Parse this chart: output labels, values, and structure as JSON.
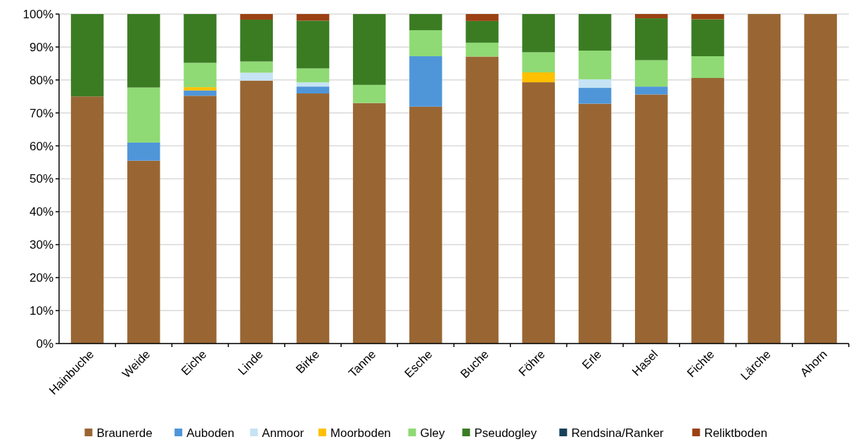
{
  "chart_data": {
    "type": "bar",
    "stacked": true,
    "categories": [
      "Hainbuche",
      "Weide",
      "Eiche",
      "Linde",
      "Birke",
      "Tanne",
      "Esche",
      "Buche",
      "Föhre",
      "Erle",
      "Hasel",
      "Fichte",
      "Lärche",
      "Ahorn"
    ],
    "series": [
      {
        "name": "Braunerde",
        "color": "#996633",
        "values": [
          75,
          55.5,
          75.2,
          79.8,
          75.9,
          73,
          71.9,
          87.1,
          79.3,
          72.8,
          75.6,
          80.6,
          100,
          100
        ]
      },
      {
        "name": "Auboden",
        "color": "#4f96d9",
        "values": [
          0,
          5.5,
          1.6,
          0,
          2.1,
          0,
          15.3,
          0,
          0,
          4.8,
          2.4,
          0,
          0,
          0
        ]
      },
      {
        "name": "Anmoor",
        "color": "#c5e3f4",
        "values": [
          0,
          0,
          0,
          2.4,
          1.3,
          0,
          0,
          0,
          0,
          2.6,
          0,
          0,
          0,
          0
        ]
      },
      {
        "name": "Moorboden",
        "color": "#ffc000",
        "values": [
          0,
          0,
          1,
          0,
          0,
          0,
          0,
          0,
          3,
          0,
          0,
          0,
          0,
          0
        ]
      },
      {
        "name": "Gley",
        "color": "#8fda74",
        "values": [
          0,
          16.7,
          7.4,
          3.4,
          4.2,
          5.5,
          7.9,
          4.2,
          6.1,
          8.7,
          8,
          6.6,
          0,
          0
        ]
      },
      {
        "name": "Pseudogley",
        "color": "#3b7c23",
        "values": [
          25,
          22.3,
          14.8,
          12.7,
          14.5,
          21.5,
          4.9,
          6.6,
          11.6,
          11.1,
          12.7,
          11.2,
          0,
          0
        ]
      },
      {
        "name": "Rendsina/Ranker",
        "color": "#17405a",
        "values": [
          0,
          0,
          0,
          0,
          0,
          0,
          0,
          0,
          0,
          0,
          0,
          0,
          0,
          0
        ]
      },
      {
        "name": "Reliktboden",
        "color": "#9b4114",
        "values": [
          0,
          0,
          0,
          1.7,
          2,
          0,
          0,
          2.1,
          0,
          0,
          1.3,
          1.6,
          0,
          0
        ]
      }
    ],
    "ylim": [
      0,
      100
    ],
    "yticks": [
      {
        "value": 0,
        "label": "0%"
      },
      {
        "value": 10,
        "label": "10%"
      },
      {
        "value": 20,
        "label": "20%"
      },
      {
        "value": 30,
        "label": "30%"
      },
      {
        "value": 40,
        "label": "40%"
      },
      {
        "value": 50,
        "label": "50%"
      },
      {
        "value": 60,
        "label": "60%"
      },
      {
        "value": 70,
        "label": "70%"
      },
      {
        "value": 80,
        "label": "80%"
      },
      {
        "value": 90,
        "label": "90%"
      },
      {
        "value": 100,
        "label": "100%"
      }
    ],
    "grid": "y",
    "legend": "bottom"
  }
}
